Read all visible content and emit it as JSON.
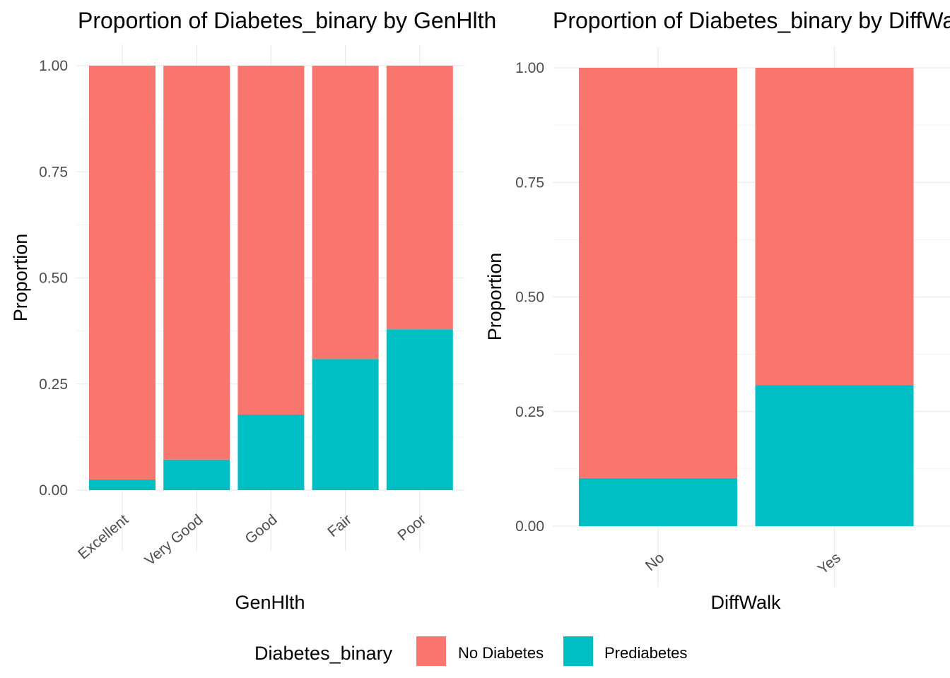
{
  "chart_data": [
    {
      "type": "bar",
      "stacked": true,
      "title": "Proportion of Diabetes_binary by GenHlth",
      "xlabel": "GenHlth",
      "ylabel": "Proportion",
      "ylim": [
        0,
        1
      ],
      "yticks": [
        "0.00",
        "0.25",
        "0.50",
        "0.75",
        "1.00"
      ],
      "categories": [
        "Excellent",
        "Very Good",
        "Good",
        "Fair",
        "Poor"
      ],
      "series": [
        {
          "name": "Prediabetes",
          "values": [
            0.025,
            0.072,
            0.178,
            0.309,
            0.379
          ]
        },
        {
          "name": "No Diabetes",
          "values": [
            0.975,
            0.928,
            0.822,
            0.691,
            0.621
          ]
        }
      ],
      "grid": true
    },
    {
      "type": "bar",
      "stacked": true,
      "title": "Proportion of Diabetes_binary by DiffWalk",
      "xlabel": "DiffWalk",
      "ylabel": "Proportion",
      "ylim": [
        0,
        1
      ],
      "yticks": [
        "0.00",
        "0.25",
        "0.50",
        "0.75",
        "1.00"
      ],
      "categories": [
        "No",
        "Yes"
      ],
      "series": [
        {
          "name": "Prediabetes",
          "values": [
            0.105,
            0.308
          ]
        },
        {
          "name": "No Diabetes",
          "values": [
            0.895,
            0.692
          ]
        }
      ],
      "grid": true
    }
  ],
  "legend": {
    "title": "Diabetes_binary",
    "position": "bottom",
    "items": [
      {
        "label": "No Diabetes",
        "color": "#F8766D"
      },
      {
        "label": "Prediabetes",
        "color": "#00BFC4"
      }
    ]
  },
  "colors": {
    "No Diabetes": "#F8766D",
    "Prediabetes": "#00BFC4"
  }
}
